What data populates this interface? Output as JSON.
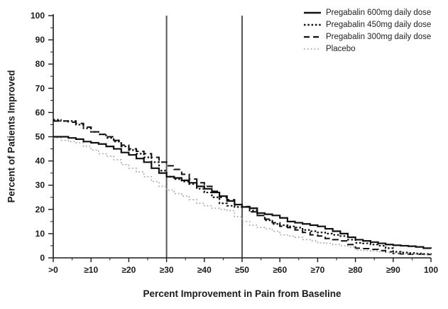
{
  "chart_data": {
    "type": "line",
    "title": "",
    "xlabel": "Percent Improvement in Pain from Baseline",
    "ylabel": "Percent of Patients Improved",
    "xlim": [
      0,
      100
    ],
    "ylim": [
      0,
      100
    ],
    "x_tick_values": [
      0,
      10,
      20,
      30,
      40,
      50,
      60,
      70,
      80,
      90,
      100
    ],
    "x_tick_labels": [
      ">0",
      "≥10",
      "≥20",
      "≥30",
      "≥40",
      "≥50",
      "≥60",
      "≥70",
      "≥80",
      "≥90",
      "100"
    ],
    "y_tick_values": [
      0,
      10,
      20,
      30,
      40,
      50,
      60,
      70,
      80,
      90,
      100
    ],
    "minor_tick_step": 5,
    "grid": false,
    "legend_position": "top-right",
    "reference_lines_x": [
      30,
      50
    ],
    "reference_line_color": "#555555",
    "x_step": 2,
    "series": [
      {
        "key": "pregabalin-600",
        "name": "Pregabalin 600mg daily dose",
        "line_style": "solid",
        "color": "#111111",
        "values": [
          50,
          50,
          49.5,
          49,
          48,
          47.5,
          47,
          46,
          45,
          43.5,
          42.5,
          41,
          39.5,
          37,
          35,
          33.5,
          33,
          32,
          31,
          29.5,
          28.5,
          27,
          25.5,
          23.5,
          22,
          21,
          20.5,
          18.5,
          18,
          17.5,
          16.5,
          15,
          14.5,
          14,
          13.5,
          13,
          12,
          11,
          10,
          8.5,
          7.5,
          7,
          6.5,
          6,
          5.5,
          5.2,
          5,
          4.8,
          4.5,
          4,
          3.8
        ]
      },
      {
        "key": "pregabalin-450",
        "name": "Pregabalin 450mg daily dose",
        "line_style": "dotted",
        "color": "#111111",
        "values": [
          57,
          56.5,
          56.5,
          55,
          53.5,
          52,
          51,
          49.5,
          48,
          46,
          44.5,
          43,
          41.5,
          39.5,
          36,
          33.5,
          32.5,
          31.5,
          30.5,
          28.5,
          27,
          25,
          22.5,
          21.5,
          21,
          21,
          19.5,
          17.5,
          15.5,
          14,
          13.5,
          13,
          12.5,
          11.5,
          11,
          10.5,
          10,
          9.5,
          9,
          7.5,
          6.2,
          6,
          5.5,
          5,
          4,
          2.5,
          2.2,
          2,
          1.8,
          1.6,
          1.5
        ]
      },
      {
        "key": "pregabalin-300",
        "name": "Pregabalin 300mg daily dose",
        "line_style": "dashed",
        "color": "#111111",
        "values": [
          56.5,
          56.5,
          56,
          55.5,
          54,
          52,
          51,
          50,
          48.5,
          46.5,
          45,
          44,
          43,
          41.5,
          39.5,
          38,
          36.5,
          34.5,
          32.5,
          31,
          29.5,
          27.5,
          25,
          24,
          22,
          21.2,
          19,
          17.5,
          16,
          14.5,
          13,
          12.5,
          11.5,
          10.5,
          9.5,
          9,
          8,
          7.5,
          7,
          5.5,
          4,
          3.8,
          3.5,
          3,
          2.5,
          1.8,
          1.6,
          1.5,
          1.5,
          1.4,
          1.2
        ]
      },
      {
        "key": "placebo",
        "name": "Placebo",
        "line_style": "fine-dotted",
        "color": "#a0a0a0",
        "values": [
          49.5,
          48.5,
          48,
          47.5,
          46,
          44.5,
          43,
          42,
          40.5,
          38.5,
          37,
          35.5,
          33.5,
          31.5,
          29.5,
          28,
          26.5,
          25.5,
          24,
          22.5,
          21.5,
          20.5,
          20,
          19.5,
          17,
          15,
          13.5,
          12.5,
          12,
          11,
          9.5,
          9,
          8.5,
          7.5,
          7,
          6.2,
          6,
          5.5,
          5,
          4.5,
          3.2,
          3,
          2.8,
          2.5,
          2.2,
          2,
          1.8,
          1.6,
          1.5,
          1.2,
          1
        ]
      }
    ]
  }
}
